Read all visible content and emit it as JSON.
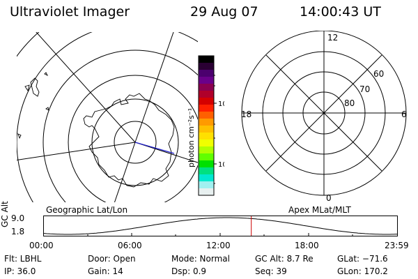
{
  "header": {
    "title": "Ultraviolet Imager",
    "date": "29 Aug 07",
    "time": "14:00:43 UT"
  },
  "left_panel": {
    "label": "Geographic Lat/Lon"
  },
  "colorbar": {
    "unit_label": "photon cm⁻²s⁻¹",
    "ticks": [
      "100",
      "10"
    ],
    "colors": [
      "#000000",
      "#2a0033",
      "#4b006e",
      "#6a008a",
      "#8a0050",
      "#b0002a",
      "#d40000",
      "#ff2000",
      "#ff6000",
      "#ff9a00",
      "#ffc000",
      "#ffe000",
      "#f0ff00",
      "#b0ff00",
      "#60ff00",
      "#00e000",
      "#00e080",
      "#00e8d0",
      "#a0f0f0",
      "#e8f0f0"
    ]
  },
  "right_panel": {
    "label": "Apex  MLat/MLT",
    "mlt_labels": [
      "12",
      "6",
      "0",
      "18"
    ],
    "mlat_labels": [
      "60",
      "70",
      "80"
    ]
  },
  "orbit_plot": {
    "y_axis_label": "GC Alt",
    "y_ticks": [
      "9.0",
      "1.8"
    ],
    "x_ticks": [
      "00:00",
      "06:00",
      "12:00",
      "18:00",
      "23:59"
    ],
    "current_time_fraction": 0.588,
    "line_color": "#000000",
    "marker_color": "#cc0000"
  },
  "info": {
    "filter": "Flt: LBHL",
    "ip": "IP: 36.0",
    "door": "Door: Open",
    "gain": "Gain: 14",
    "mode": "Mode: Normal",
    "dsp": "Dsp:     0.9",
    "gc_alt": "GC Alt: 8.7 Re",
    "seq": "Seq: 39",
    "glat": "GLat: −71.6",
    "glon": "GLon: 170.2"
  }
}
